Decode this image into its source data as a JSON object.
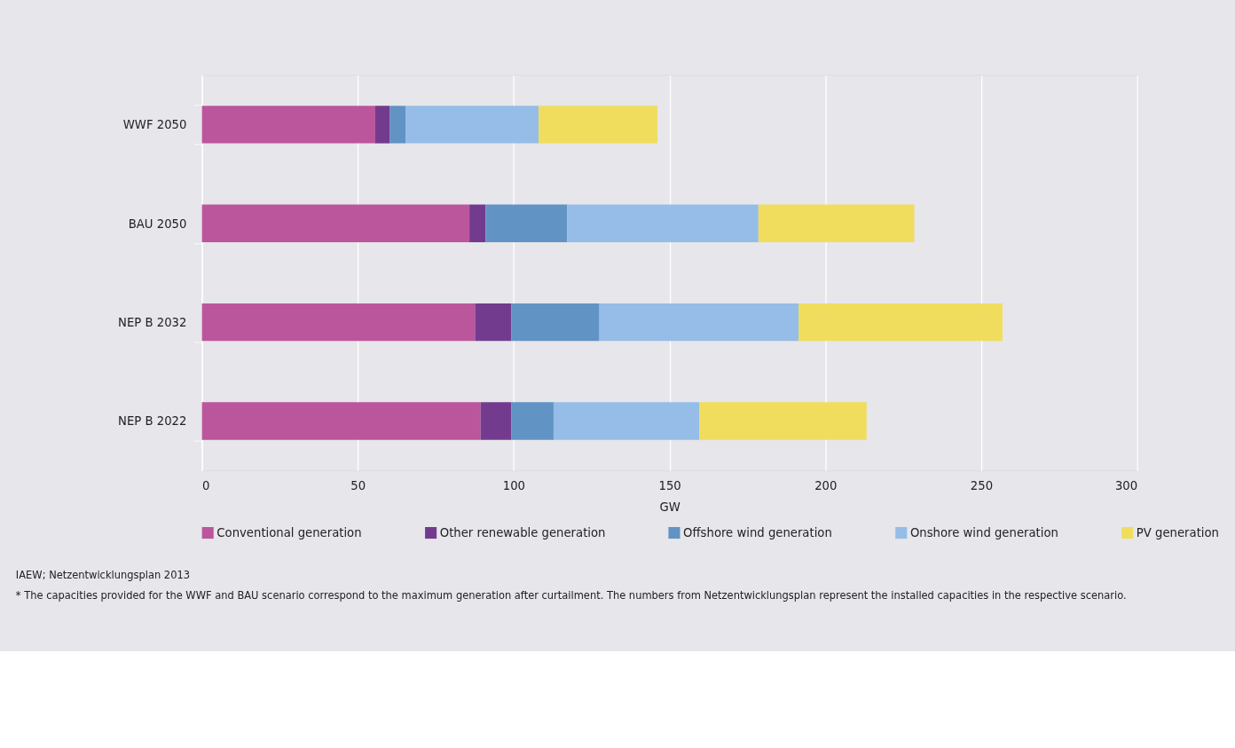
{
  "chart_data": {
    "type": "bar",
    "orientation": "horizontal",
    "stacked": true,
    "categories": [
      "WWF 2050",
      "BAU 2050",
      "NEP B 2032",
      "NEP B 2022"
    ],
    "series": [
      {
        "name": "Conventional generation",
        "color": "#bc569c",
        "values": [
          55.6,
          85.8,
          87.6,
          89.4
        ]
      },
      {
        "name": "Other renewable generation",
        "color": "#733b8e",
        "values": [
          4.7,
          5.2,
          11.6,
          9.8
        ]
      },
      {
        "name": "Offshore wind generation",
        "color": "#6193c4",
        "values": [
          5.0,
          26.2,
          28.3,
          13.6
        ]
      },
      {
        "name": "Onshore wind generation",
        "color": "#95bde8",
        "values": [
          42.7,
          61.3,
          63.9,
          46.7
        ]
      },
      {
        "name": "PV generation",
        "color": "#f0dd5e",
        "values": [
          38.1,
          50.0,
          65.4,
          53.7
        ]
      }
    ],
    "xlim": [
      0,
      300
    ],
    "xticks": [
      0,
      50,
      100,
      150,
      200,
      250,
      300
    ],
    "xlabel": "GW",
    "grid": "x",
    "legend": "bottom",
    "annotations": [
      "IAEW; Netzentwicklungsplan 2013",
      "* The capacities provided for the WWF and BAU scenario correspond to the maximum generation after curtailment. The numbers from Netzentwicklungsplan represent the installed capacities in the respective scenario."
    ]
  }
}
